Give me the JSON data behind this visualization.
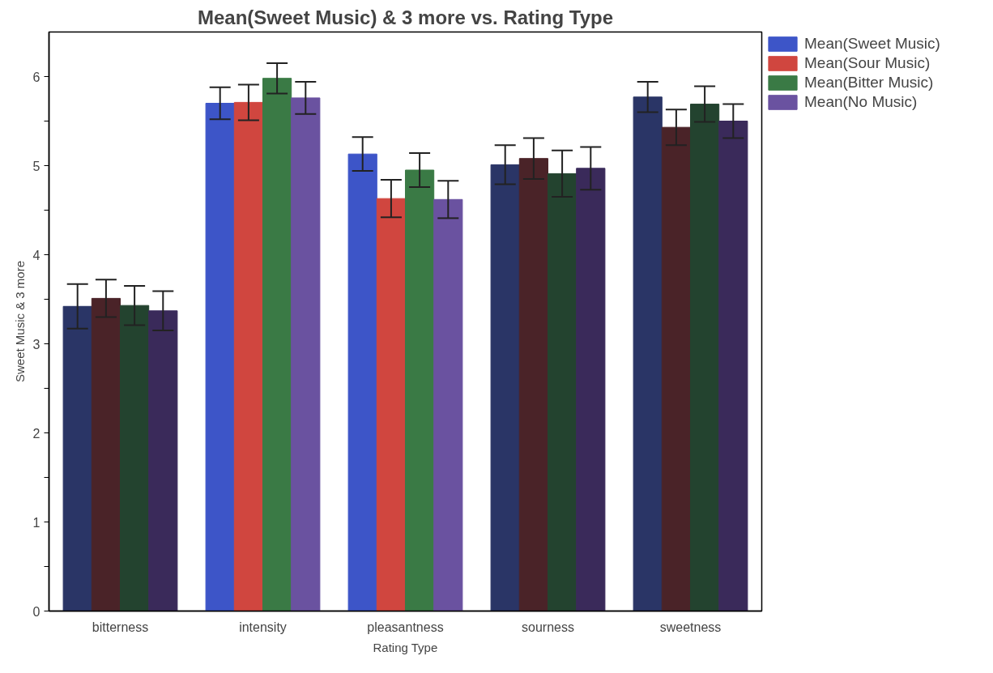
{
  "chart_data": {
    "type": "bar",
    "title": "Mean(Sweet Music) & 3 more vs. Rating Type",
    "xlabel": "Rating Type",
    "ylabel": "Sweet Music & 3 more",
    "categories": [
      "bitterness",
      "intensity",
      "pleasantness",
      "sourness",
      "sweetness"
    ],
    "series": [
      {
        "name": "Mean(Sweet Music)",
        "color": "#3d55c8",
        "colors": [
          "#2a3566",
          "#3d55c8",
          "#3d55c8",
          "#2a3566",
          "#2a3566"
        ],
        "values": [
          3.42,
          5.7,
          5.13,
          5.01,
          5.77
        ],
        "errors": [
          0.25,
          0.18,
          0.19,
          0.22,
          0.17
        ]
      },
      {
        "name": "Mean(Sour Music)",
        "color": "#d0463f",
        "colors": [
          "#4a2328",
          "#d0463f",
          "#d0463f",
          "#4a2328",
          "#4a2328"
        ],
        "values": [
          3.51,
          5.71,
          4.63,
          5.08,
          5.43
        ],
        "errors": [
          0.21,
          0.2,
          0.21,
          0.23,
          0.2
        ]
      },
      {
        "name": "Mean(Bitter Music)",
        "color": "#3a7a45",
        "colors": [
          "#23432f",
          "#3a7a45",
          "#3a7a45",
          "#23432f",
          "#23432f"
        ],
        "values": [
          3.43,
          5.98,
          4.95,
          4.91,
          5.69
        ],
        "errors": [
          0.22,
          0.17,
          0.19,
          0.26,
          0.2
        ]
      },
      {
        "name": "Mean(No Music)",
        "color": "#6a52a0",
        "colors": [
          "#3a2a5a",
          "#6a52a0",
          "#6a52a0",
          "#3a2a5a",
          "#3a2a5a"
        ],
        "values": [
          3.37,
          5.76,
          4.62,
          4.97,
          5.5
        ],
        "errors": [
          0.22,
          0.18,
          0.21,
          0.24,
          0.19
        ]
      }
    ],
    "ylim": [
      0,
      6.5
    ],
    "yticks": [
      0,
      {
        "value": 0.5,
        "label": null
      },
      1,
      {
        "value": 1.5,
        "label": null
      },
      2,
      {
        "value": 2.5,
        "label": null
      },
      3,
      {
        "value": 3.5,
        "label": null
      },
      4,
      {
        "value": 4.5,
        "label": null
      },
      5,
      {
        "value": 5.5,
        "label": null
      },
      6
    ],
    "grid": false,
    "legend": "right"
  }
}
